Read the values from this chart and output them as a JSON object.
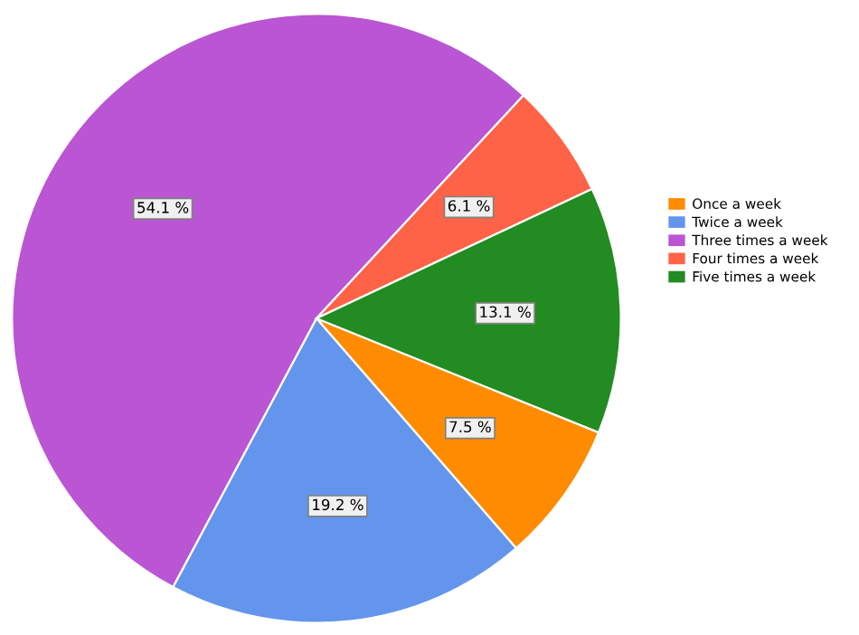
{
  "chart_data": {
    "type": "pie",
    "categories": [
      "Once a week",
      "Twice a week",
      "Three times a week",
      "Four times a week",
      "Five times a week"
    ],
    "values": [
      7.5,
      19.2,
      54.1,
      6.1,
      13.1
    ],
    "colors": [
      "#ff8c00",
      "#6495ed",
      "#ba55d3",
      "#ff6347",
      "#228b22"
    ],
    "value_labels": [
      "7.5 %",
      "19.2 %",
      "54.1 %",
      "6.1 %",
      "13.1 %"
    ],
    "legend": "right"
  }
}
